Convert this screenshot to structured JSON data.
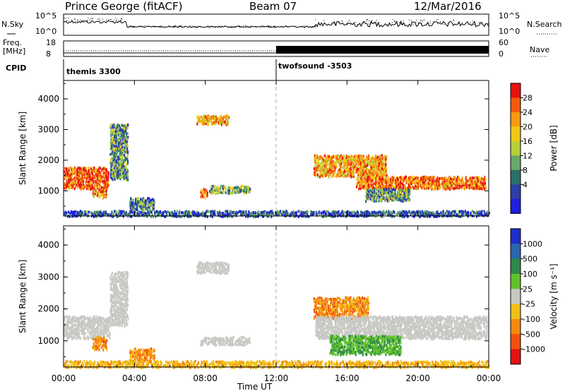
{
  "header": {
    "station": "Prince George (fitACF)",
    "beam": "Beam 07",
    "date": "12/Mar/2016"
  },
  "top_panels": {
    "nsky_label": "N.Sky",
    "nsky_ticks": [
      "10^5",
      "10^0"
    ],
    "nsearch_label": "N.Search",
    "nsearch_ticks": [
      "10^5",
      "10^0"
    ],
    "freq_label_line1": "Freq.",
    "freq_label_line2": "[MHz]",
    "freq_ticks": [
      "18",
      "8"
    ],
    "nave_label": "Nave",
    "nave_ticks": [
      "60",
      "0"
    ],
    "cpid_label": "CPID",
    "cpid_segments": [
      {
        "name": "themis 3300",
        "start_hour": 0
      },
      {
        "name": "twofsound -3503",
        "start_hour": 12
      }
    ]
  },
  "chart_data": [
    {
      "type": "heatmap",
      "name": "power",
      "ylabel": "Slant Range [km]",
      "xlabel": "Time UT",
      "xlim": [
        0,
        24
      ],
      "ylim": [
        180,
        4600
      ],
      "x_ticks": [
        "00:00",
        "04:00",
        "08:00",
        "12:00",
        "16:00",
        "20:00",
        "00:00"
      ],
      "y_ticks": [
        1000,
        2000,
        3000,
        4000
      ],
      "colorbar": {
        "label": "Power [dB]",
        "ticks": [
          "28",
          "24",
          "20",
          "16",
          "12",
          "8",
          "4"
        ],
        "colors": [
          "#e8120f",
          "#f45a0c",
          "#f89a12",
          "#f0c814",
          "#b7cf36",
          "#69a86a",
          "#2a6f6a",
          "#2e3fa8",
          "#1d1ee0"
        ]
      },
      "features": [
        {
          "t0": 0.0,
          "t1": 2.5,
          "r0": 1100,
          "r1": 1800,
          "level": 0.85
        },
        {
          "t0": 2.6,
          "t1": 3.6,
          "r0": 1400,
          "r1": 3200,
          "level": 0.35
        },
        {
          "t0": 1.6,
          "t1": 2.4,
          "r0": 800,
          "r1": 1100,
          "level": 0.75
        },
        {
          "t0": 3.7,
          "t1": 5.1,
          "r0": 400,
          "r1": 800,
          "level": 0.3
        },
        {
          "t0": 7.5,
          "t1": 9.3,
          "r0": 3200,
          "r1": 3500,
          "level": 0.7
        },
        {
          "t0": 7.7,
          "t1": 8.1,
          "r0": 800,
          "r1": 1100,
          "level": 0.8
        },
        {
          "t0": 8.2,
          "t1": 10.5,
          "r0": 950,
          "r1": 1200,
          "level": 0.4
        },
        {
          "t0": 14.1,
          "t1": 18.2,
          "r0": 1500,
          "r1": 2200,
          "level": 0.7
        },
        {
          "t0": 16.5,
          "t1": 23.8,
          "r0": 1100,
          "r1": 1500,
          "level": 0.8
        },
        {
          "t0": 17.0,
          "t1": 19.5,
          "r0": 700,
          "r1": 1100,
          "level": 0.35
        },
        {
          "t0": 0.0,
          "t1": 24.0,
          "r0": 200,
          "r1": 380,
          "level": 0.2
        }
      ]
    },
    {
      "type": "heatmap",
      "name": "velocity",
      "ylabel": "Slant Range [km]",
      "xlabel": "Time UT",
      "xlim": [
        0,
        24
      ],
      "ylim": [
        180,
        4600
      ],
      "x_ticks": [
        "00:00",
        "04:00",
        "08:00",
        "12:00",
        "16:00",
        "20:00",
        "00:00"
      ],
      "y_ticks": [
        1000,
        2000,
        3000,
        4000
      ],
      "colorbar": {
        "label": "Velocity [m s⁻¹]",
        "ticks": [
          "1000",
          "500",
          "100",
          "25",
          "-25",
          "-100",
          "-500",
          "-1000"
        ],
        "colors": [
          "#1d2fc9",
          "#2a66b0",
          "#2e8a48",
          "#5fc12a",
          "#c8c8c4",
          "#f0c014",
          "#f58a10",
          "#f2500e",
          "#e41111"
        ]
      },
      "features": [
        {
          "t0": 0.0,
          "t1": 2.6,
          "r0": 1100,
          "r1": 1800,
          "level": "ground"
        },
        {
          "t0": 2.6,
          "t1": 3.6,
          "r0": 1500,
          "r1": 3200,
          "level": "ground"
        },
        {
          "t0": 1.6,
          "t1": 2.4,
          "r0": 750,
          "r1": 1150,
          "level": -500
        },
        {
          "t0": 3.7,
          "t1": 5.1,
          "r0": 400,
          "r1": 800,
          "level": -500
        },
        {
          "t0": 7.5,
          "t1": 9.3,
          "r0": 3150,
          "r1": 3500,
          "level": "ground"
        },
        {
          "t0": 7.7,
          "t1": 10.5,
          "r0": 900,
          "r1": 1150,
          "level": "ground"
        },
        {
          "t0": 14.1,
          "t1": 17.2,
          "r0": 1700,
          "r1": 2400,
          "level": -500
        },
        {
          "t0": 14.2,
          "t1": 23.9,
          "r0": 1100,
          "r1": 1800,
          "level": "ground"
        },
        {
          "t0": 15.0,
          "t1": 19.0,
          "r0": 600,
          "r1": 1200,
          "level": 100
        },
        {
          "t0": 0.0,
          "t1": 24.0,
          "r0": 200,
          "r1": 400,
          "level": -100
        }
      ]
    }
  ]
}
